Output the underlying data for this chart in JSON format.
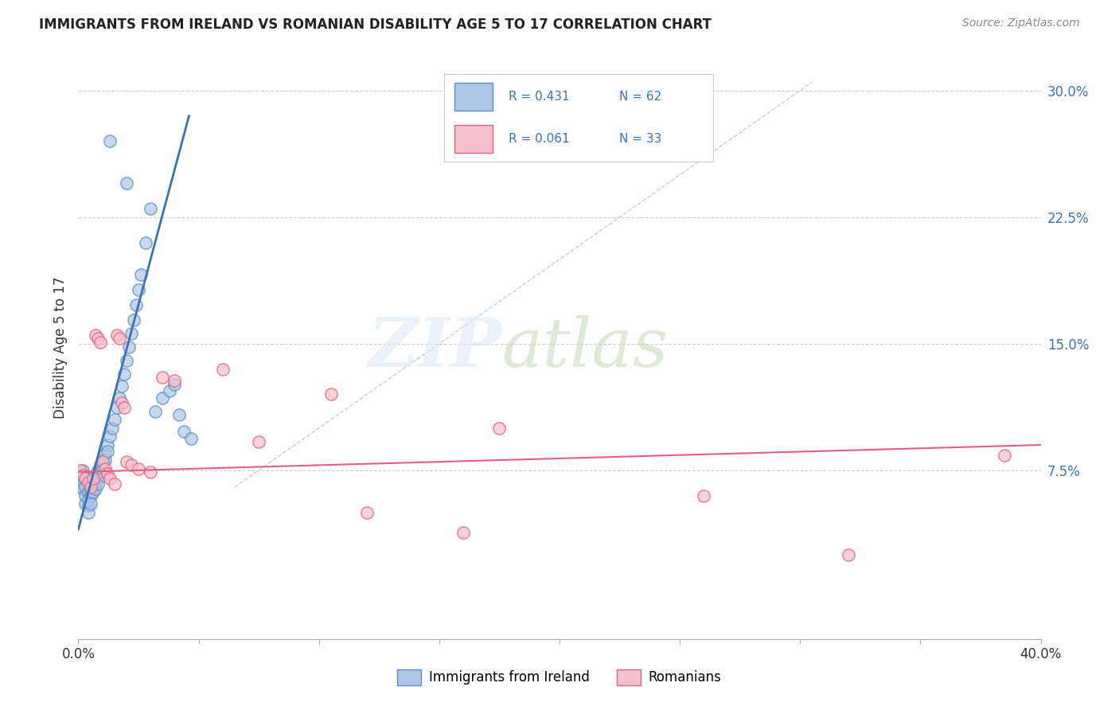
{
  "title": "IMMIGRANTS FROM IRELAND VS ROMANIAN DISABILITY AGE 5 TO 17 CORRELATION CHART",
  "source": "Source: ZipAtlas.com",
  "ylabel": "Disability Age 5 to 17",
  "x_min": 0.0,
  "x_max": 0.4,
  "y_min": -0.025,
  "y_max": 0.32,
  "y_ticks_right": [
    0.075,
    0.15,
    0.225,
    0.3
  ],
  "y_tick_labels_right": [
    "7.5%",
    "15.0%",
    "22.5%",
    "30.0%"
  ],
  "ireland_color": "#aec6e8",
  "ireland_edge": "#5b8ec4",
  "romania_color": "#f5c0cd",
  "romania_edge": "#e06080",
  "ireland_line_color": "#3a72b8",
  "romania_line_color": "#e06080",
  "diagonal_color": "#b0c4d8",
  "legend_text_color": "#3a72b8",
  "title_fontsize": 12,
  "watermark_zip_color": "#d8e4f0",
  "watermark_atlas_color": "#c8d8c0",
  "ireland_line_x": [
    0.0,
    0.046
  ],
  "ireland_line_y": [
    0.04,
    0.285
  ],
  "romania_line_x": [
    0.0,
    0.4
  ],
  "romania_line_y": [
    0.074,
    0.09
  ],
  "diagonal_line_x": [
    0.065,
    0.305
  ],
  "diagonal_line_y": [
    0.065,
    0.305
  ],
  "ireland_scatter_x": [
    0.001,
    0.001,
    0.001,
    0.002,
    0.002,
    0.002,
    0.002,
    0.003,
    0.003,
    0.003,
    0.003,
    0.004,
    0.004,
    0.004,
    0.004,
    0.005,
    0.005,
    0.005,
    0.005,
    0.006,
    0.006,
    0.006,
    0.007,
    0.007,
    0.007,
    0.008,
    0.008,
    0.008,
    0.009,
    0.009,
    0.01,
    0.01,
    0.01,
    0.011,
    0.011,
    0.012,
    0.012,
    0.013,
    0.014,
    0.015,
    0.016,
    0.017,
    0.018,
    0.019,
    0.02,
    0.021,
    0.022,
    0.023,
    0.024,
    0.025,
    0.026,
    0.028,
    0.03,
    0.032,
    0.035,
    0.038,
    0.04,
    0.042,
    0.044,
    0.047,
    0.013,
    0.02
  ],
  "ireland_scatter_y": [
    0.07,
    0.068,
    0.065,
    0.075,
    0.072,
    0.068,
    0.064,
    0.07,
    0.065,
    0.06,
    0.055,
    0.062,
    0.058,
    0.054,
    0.05,
    0.068,
    0.064,
    0.06,
    0.055,
    0.07,
    0.066,
    0.062,
    0.072,
    0.068,
    0.064,
    0.075,
    0.071,
    0.067,
    0.078,
    0.074,
    0.08,
    0.076,
    0.072,
    0.085,
    0.081,
    0.09,
    0.086,
    0.095,
    0.1,
    0.105,
    0.112,
    0.118,
    0.125,
    0.132,
    0.14,
    0.148,
    0.156,
    0.164,
    0.173,
    0.182,
    0.191,
    0.21,
    0.23,
    0.11,
    0.118,
    0.122,
    0.126,
    0.108,
    0.098,
    0.094,
    0.27,
    0.245
  ],
  "romania_scatter_x": [
    0.001,
    0.002,
    0.003,
    0.004,
    0.005,
    0.006,
    0.007,
    0.008,
    0.009,
    0.01,
    0.011,
    0.012,
    0.013,
    0.015,
    0.016,
    0.017,
    0.018,
    0.019,
    0.02,
    0.022,
    0.025,
    0.03,
    0.035,
    0.04,
    0.06,
    0.075,
    0.105,
    0.12,
    0.16,
    0.175,
    0.26,
    0.32,
    0.385
  ],
  "romania_scatter_y": [
    0.075,
    0.072,
    0.07,
    0.068,
    0.065,
    0.07,
    0.155,
    0.153,
    0.151,
    0.08,
    0.076,
    0.073,
    0.07,
    0.067,
    0.155,
    0.153,
    0.115,
    0.112,
    0.08,
    0.078,
    0.076,
    0.074,
    0.13,
    0.128,
    0.135,
    0.092,
    0.12,
    0.05,
    0.038,
    0.1,
    0.06,
    0.025,
    0.084
  ]
}
